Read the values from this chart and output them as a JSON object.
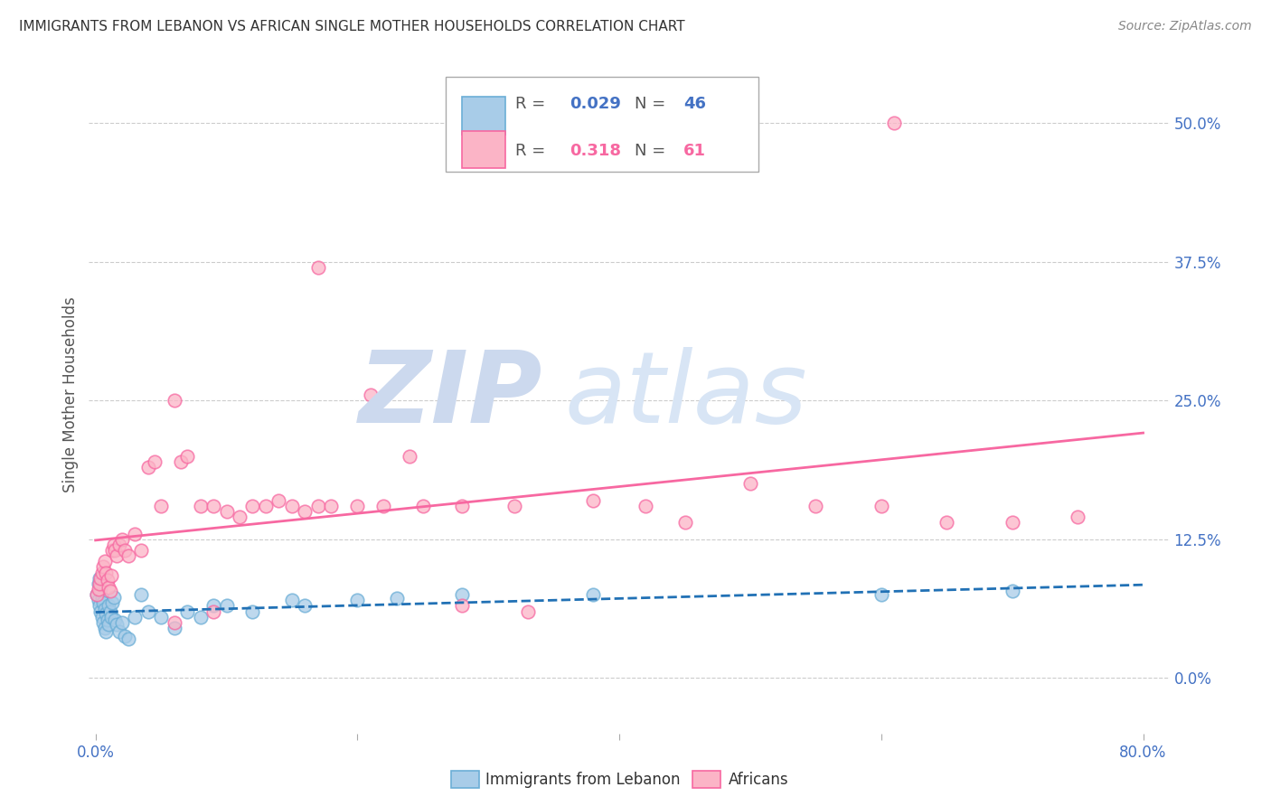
{
  "title": "IMMIGRANTS FROM LEBANON VS AFRICAN SINGLE MOTHER HOUSEHOLDS CORRELATION CHART",
  "source": "Source: ZipAtlas.com",
  "ylabel_label": "Single Mother Households",
  "ytick_labels": [
    "0.0%",
    "12.5%",
    "25.0%",
    "37.5%",
    "50.0%"
  ],
  "ytick_values": [
    0.0,
    0.125,
    0.25,
    0.375,
    0.5
  ],
  "xtick_values": [
    0.0,
    0.2,
    0.4,
    0.6,
    0.8
  ],
  "xtick_labels": [
    "0.0%",
    "",
    "",
    "",
    "80.0%"
  ],
  "xlim": [
    -0.005,
    0.82
  ],
  "ylim": [
    -0.05,
    0.56
  ],
  "blue_color_face": "#a8cce8",
  "blue_color_edge": "#6baed6",
  "pink_color_face": "#fbb4c6",
  "pink_color_edge": "#f768a1",
  "blue_line_color": "#2171b5",
  "pink_line_color": "#f768a1",
  "tick_label_color": "#4472c4",
  "title_color": "#333333",
  "source_color": "#888888",
  "ylabel_color": "#555555",
  "background_color": "#ffffff",
  "grid_color": "#cccccc",
  "watermark_zip_color": "#ccd9ee",
  "watermark_atlas_color": "#d8e5f5",
  "blue_x": [
    0.001,
    0.002,
    0.002,
    0.003,
    0.003,
    0.004,
    0.004,
    0.005,
    0.005,
    0.006,
    0.006,
    0.007,
    0.007,
    0.008,
    0.008,
    0.009,
    0.01,
    0.01,
    0.011,
    0.012,
    0.013,
    0.014,
    0.015,
    0.016,
    0.018,
    0.02,
    0.022,
    0.025,
    0.03,
    0.035,
    0.04,
    0.05,
    0.06,
    0.07,
    0.08,
    0.09,
    0.1,
    0.12,
    0.15,
    0.16,
    0.2,
    0.23,
    0.28,
    0.38,
    0.6,
    0.7
  ],
  "blue_y": [
    0.075,
    0.085,
    0.07,
    0.09,
    0.065,
    0.08,
    0.06,
    0.072,
    0.055,
    0.068,
    0.05,
    0.062,
    0.045,
    0.058,
    0.042,
    0.052,
    0.065,
    0.048,
    0.06,
    0.055,
    0.068,
    0.073,
    0.052,
    0.048,
    0.042,
    0.05,
    0.038,
    0.035,
    0.055,
    0.075,
    0.06,
    0.055,
    0.045,
    0.06,
    0.055,
    0.065,
    0.065,
    0.06,
    0.07,
    0.065,
    0.07,
    0.072,
    0.075,
    0.075,
    0.075,
    0.078
  ],
  "pink_x": [
    0.001,
    0.002,
    0.003,
    0.004,
    0.005,
    0.006,
    0.007,
    0.008,
    0.009,
    0.01,
    0.011,
    0.012,
    0.013,
    0.014,
    0.015,
    0.016,
    0.018,
    0.02,
    0.022,
    0.025,
    0.03,
    0.035,
    0.04,
    0.045,
    0.05,
    0.06,
    0.065,
    0.07,
    0.08,
    0.09,
    0.1,
    0.11,
    0.12,
    0.13,
    0.14,
    0.15,
    0.16,
    0.17,
    0.18,
    0.2,
    0.22,
    0.25,
    0.28,
    0.32,
    0.38,
    0.42,
    0.45,
    0.5,
    0.55,
    0.6,
    0.65,
    0.7,
    0.75,
    0.17,
    0.21,
    0.24,
    0.06,
    0.09,
    0.28,
    0.33,
    0.61
  ],
  "pink_y": [
    0.075,
    0.08,
    0.085,
    0.09,
    0.095,
    0.1,
    0.105,
    0.095,
    0.088,
    0.082,
    0.078,
    0.092,
    0.115,
    0.12,
    0.115,
    0.11,
    0.12,
    0.125,
    0.115,
    0.11,
    0.13,
    0.115,
    0.19,
    0.195,
    0.155,
    0.25,
    0.195,
    0.2,
    0.155,
    0.155,
    0.15,
    0.145,
    0.155,
    0.155,
    0.16,
    0.155,
    0.15,
    0.155,
    0.155,
    0.155,
    0.155,
    0.155,
    0.155,
    0.155,
    0.16,
    0.155,
    0.14,
    0.175,
    0.155,
    0.155,
    0.14,
    0.14,
    0.145,
    0.37,
    0.255,
    0.2,
    0.05,
    0.06,
    0.065,
    0.06,
    0.5
  ]
}
